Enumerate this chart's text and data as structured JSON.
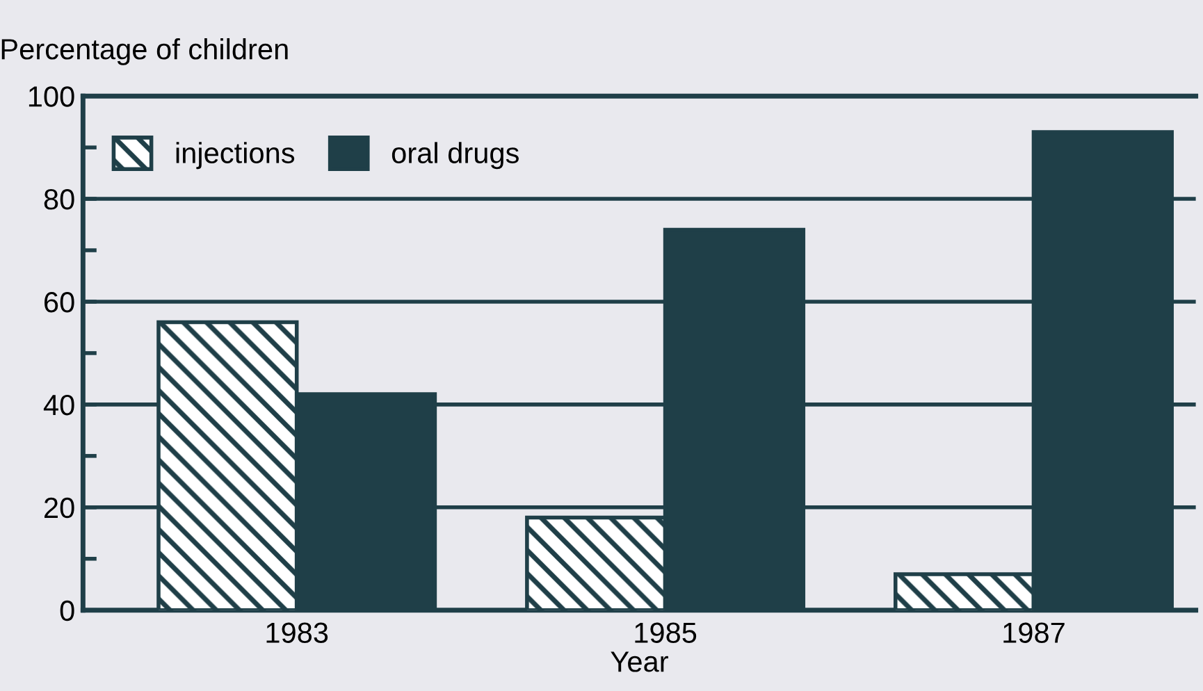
{
  "chart_data": {
    "type": "bar",
    "ylabel": "Percentage of children",
    "xlabel": "Year",
    "categories": [
      "1983",
      "1985",
      "1987"
    ],
    "series": [
      {
        "name": "injections",
        "color": "#1f3f48",
        "values": [
          56,
          18,
          7
        ]
      },
      {
        "name": "oral drugs",
        "color": "#1f3f48",
        "values": [
          42,
          74,
          93
        ]
      }
    ],
    "ylim": [
      0,
      100
    ],
    "yticks": [
      0,
      {
        "value": 10,
        "label": null
      },
      20,
      {
        "value": 30,
        "label": null
      },
      40,
      {
        "value": 50,
        "label": null
      },
      60,
      {
        "value": 70,
        "label": null
      },
      80,
      {
        "value": 90,
        "label": null
      },
      100
    ],
    "grid": "y",
    "legend": "top"
  }
}
